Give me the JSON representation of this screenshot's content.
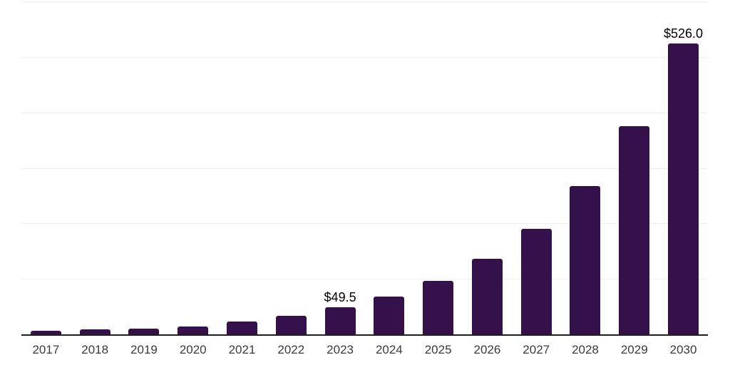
{
  "page": {
    "background": "#ffffff"
  },
  "chart_data": {
    "type": "bar",
    "title": "",
    "xlabel": "",
    "ylabel": "",
    "categories": [
      "2017",
      "2018",
      "2019",
      "2020",
      "2021",
      "2022",
      "2023",
      "2024",
      "2025",
      "2026",
      "2027",
      "2028",
      "2029",
      "2030"
    ],
    "values": [
      8,
      10,
      12,
      16,
      24,
      35,
      49.5,
      69,
      98,
      137,
      192,
      269,
      377,
      526
    ],
    "data_labels": [
      "",
      "",
      "",
      "",
      "",
      "",
      "$49.5",
      "",
      "",
      "",
      "",
      "",
      "",
      "$526.0"
    ],
    "ylim": [
      0,
      600
    ],
    "gridline_step": 100,
    "grid": "horizontal",
    "legend": "none",
    "colors": {
      "bar": "#34114b",
      "gridline": "#f0f0f0",
      "axis": "#1f1f1f",
      "tick_label": "#3c3c3c",
      "data_label": "#000000",
      "background": "#ffffff"
    }
  }
}
